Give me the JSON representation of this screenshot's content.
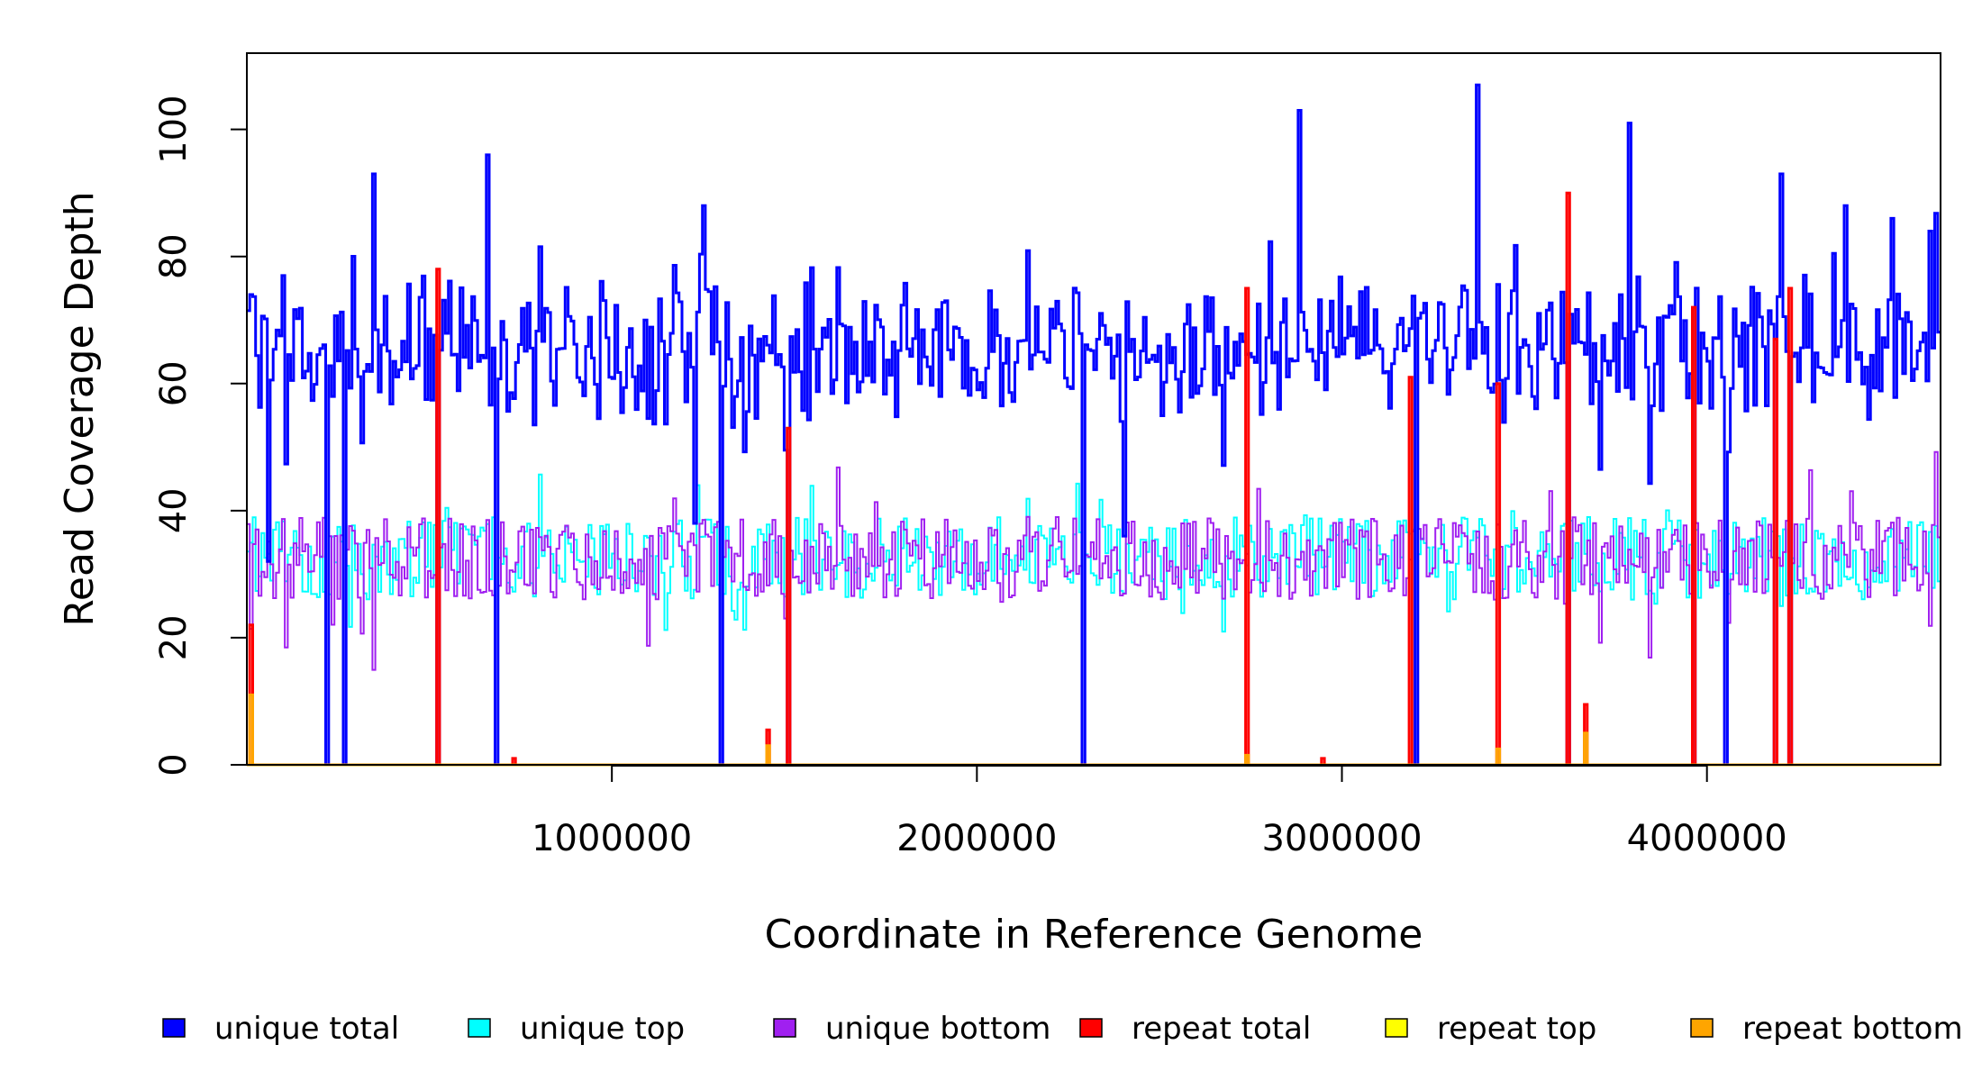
{
  "chart_data": {
    "type": "line",
    "title": "",
    "xlabel": "Coordinate in Reference Genome",
    "ylabel": "Read Coverage Depth",
    "xlim": [
      0,
      4640000
    ],
    "ylim": [
      0,
      112
    ],
    "x_ticks": [
      1000000,
      2000000,
      3000000,
      4000000
    ],
    "x_tick_labels": [
      "1000000",
      "2000000",
      "3000000",
      "4000000"
    ],
    "y_ticks": [
      0,
      20,
      40,
      60,
      80,
      100
    ],
    "y_tick_labels": [
      "0",
      "20",
      "40",
      "60",
      "80",
      "100"
    ],
    "grid": false,
    "legend_position": "bottom",
    "bin_size": 8000,
    "legend": [
      {
        "label": "unique total",
        "color": "#0000FF"
      },
      {
        "label": "unique top",
        "color": "#00FFFF"
      },
      {
        "label": "unique bottom",
        "color": "#A020F0"
      },
      {
        "label": "repeat total",
        "color": "#FF0000"
      },
      {
        "label": "repeat top",
        "color": "#FFFF00"
      },
      {
        "label": "repeat bottom",
        "color": "#FFA500"
      }
    ],
    "series_colors": {
      "unique_total": "#0000FF",
      "unique_top": "#00FFFF",
      "unique_bottom": "#A020F0",
      "repeat_total": "#FF0000",
      "repeat_top": "#FFFF00",
      "repeat_bottom": "#FFA500"
    },
    "unique_total_peaks": [
      {
        "x": 8000,
        "y": 74
      },
      {
        "x": 220000,
        "y": 81
      },
      {
        "x": 350000,
        "y": 93
      },
      {
        "x": 660000,
        "y": 96
      },
      {
        "x": 1250000,
        "y": 88
      },
      {
        "x": 2880000,
        "y": 103
      },
      {
        "x": 3370000,
        "y": 107
      },
      {
        "x": 3790000,
        "y": 101
      },
      {
        "x": 4200000,
        "y": 93
      },
      {
        "x": 4380000,
        "y": 88
      },
      {
        "x": 4610000,
        "y": 84
      }
    ],
    "unique_total_low": [
      {
        "x": 60000,
        "y": 32
      },
      {
        "x": 1230000,
        "y": 38
      },
      {
        "x": 2400000,
        "y": 36
      }
    ],
    "coverage_gaps": [
      220000,
      265000,
      520000,
      680000,
      1300000,
      1480000,
      2290000,
      3200000,
      3620000,
      3960000,
      4050000,
      4190000,
      4230000
    ],
    "repeat_total_peaks": [
      {
        "x": 10000,
        "y": 22
      },
      {
        "x": 520000,
        "y": 78
      },
      {
        "x": 730000,
        "y": 1
      },
      {
        "x": 1425000,
        "y": 5.5
      },
      {
        "x": 1480000,
        "y": 53
      },
      {
        "x": 2740000,
        "y": 75
      },
      {
        "x": 2950000,
        "y": 1
      },
      {
        "x": 3190000,
        "y": 61
      },
      {
        "x": 3430000,
        "y": 60
      },
      {
        "x": 3620000,
        "y": 90
      },
      {
        "x": 3670000,
        "y": 9.5
      },
      {
        "x": 3960000,
        "y": 72
      },
      {
        "x": 4190000,
        "y": 67
      },
      {
        "x": 4230000,
        "y": 75
      }
    ],
    "repeat_bottom_peaks": [
      {
        "x": 10000,
        "y": 11
      },
      {
        "x": 1425000,
        "y": 3
      },
      {
        "x": 2740000,
        "y": 1.5
      },
      {
        "x": 3430000,
        "y": 2.5
      },
      {
        "x": 3670000,
        "y": 5
      }
    ]
  }
}
